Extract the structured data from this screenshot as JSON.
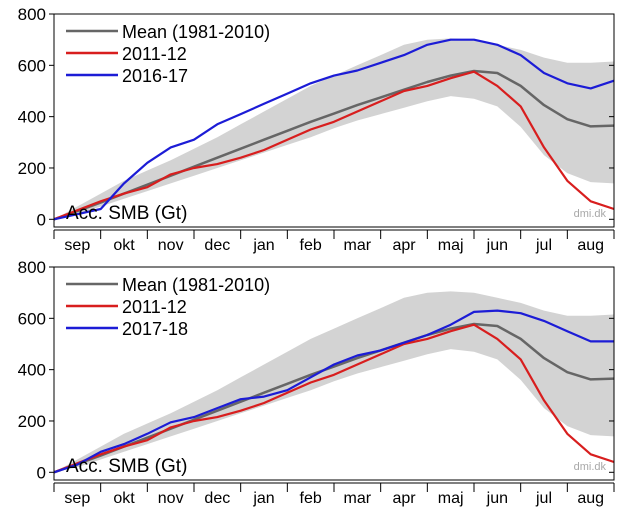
{
  "chart_data": [
    {
      "type": "line",
      "ylabel": "Acc. SMB (Gt)",
      "watermark": "dmi.dk",
      "ylim": [
        -30,
        800
      ],
      "yticks": [
        0,
        200,
        400,
        600,
        800
      ],
      "months": [
        "sep",
        "okt",
        "nov",
        "dec",
        "jan",
        "feb",
        "mar",
        "apr",
        "maj",
        "jun",
        "jul",
        "aug"
      ],
      "x": [
        0,
        15,
        30,
        45,
        60,
        75,
        90,
        105,
        120,
        135,
        150,
        165,
        180,
        195,
        210,
        225,
        240,
        255,
        270,
        285,
        300,
        315,
        330,
        345,
        360
      ],
      "band": {
        "lower": [
          0,
          20,
          50,
          80,
          110,
          140,
          170,
          200,
          230,
          260,
          290,
          320,
          355,
          385,
          410,
          435,
          460,
          480,
          470,
          440,
          360,
          250,
          180,
          145,
          140
        ],
        "upper": [
          0,
          50,
          100,
          150,
          190,
          230,
          275,
          320,
          370,
          420,
          470,
          520,
          560,
          600,
          640,
          680,
          700,
          705,
          700,
          680,
          660,
          630,
          610,
          610,
          615
        ]
      },
      "series": [
        {
          "name": "Mean (1981-2010)",
          "color": "#666666",
          "values": [
            0,
            32,
            65,
            100,
            135,
            170,
            205,
            240,
            275,
            310,
            345,
            380,
            412,
            445,
            475,
            505,
            535,
            560,
            578,
            570,
            520,
            445,
            390,
            362,
            365
          ]
        },
        {
          "name": "2011-12",
          "color": "#d81e1e",
          "values": [
            0,
            35,
            70,
            100,
            125,
            175,
            200,
            215,
            240,
            270,
            310,
            350,
            380,
            420,
            460,
            500,
            520,
            550,
            575,
            520,
            440,
            280,
            150,
            70,
            40
          ]
        },
        {
          "name": "2016-17",
          "color": "#1c1cd6",
          "values": [
            0,
            20,
            40,
            140,
            220,
            280,
            310,
            370,
            410,
            450,
            490,
            530,
            560,
            580,
            610,
            640,
            680,
            700,
            700,
            680,
            640,
            570,
            530,
            510,
            540
          ]
        }
      ]
    },
    {
      "type": "line",
      "ylabel": "Acc. SMB (Gt)",
      "watermark": "dmi.dk",
      "ylim": [
        -30,
        800
      ],
      "yticks": [
        0,
        200,
        400,
        600,
        800
      ],
      "months": [
        "sep",
        "okt",
        "nov",
        "dec",
        "jan",
        "feb",
        "mar",
        "apr",
        "maj",
        "jun",
        "jul",
        "aug"
      ],
      "x": [
        0,
        15,
        30,
        45,
        60,
        75,
        90,
        105,
        120,
        135,
        150,
        165,
        180,
        195,
        210,
        225,
        240,
        255,
        270,
        285,
        300,
        315,
        330,
        345,
        360
      ],
      "band": {
        "lower": [
          0,
          20,
          50,
          80,
          110,
          140,
          170,
          200,
          230,
          260,
          290,
          320,
          355,
          385,
          410,
          435,
          460,
          480,
          470,
          440,
          360,
          250,
          180,
          145,
          140
        ],
        "upper": [
          0,
          50,
          100,
          150,
          190,
          230,
          275,
          320,
          370,
          420,
          470,
          520,
          560,
          600,
          640,
          680,
          700,
          705,
          700,
          680,
          660,
          630,
          610,
          610,
          615
        ]
      },
      "series": [
        {
          "name": "Mean (1981-2010)",
          "color": "#666666",
          "values": [
            0,
            32,
            65,
            100,
            135,
            170,
            205,
            240,
            275,
            310,
            345,
            380,
            412,
            445,
            475,
            505,
            535,
            560,
            578,
            570,
            520,
            445,
            390,
            362,
            365
          ]
        },
        {
          "name": "2011-12",
          "color": "#d81e1e",
          "values": [
            0,
            35,
            70,
            100,
            125,
            175,
            200,
            215,
            240,
            270,
            310,
            350,
            380,
            420,
            460,
            500,
            520,
            550,
            575,
            520,
            440,
            280,
            150,
            70,
            40
          ]
        },
        {
          "name": "2017-18",
          "color": "#1c1cd6",
          "values": [
            0,
            30,
            80,
            110,
            150,
            195,
            215,
            250,
            285,
            295,
            320,
            370,
            420,
            455,
            475,
            505,
            535,
            575,
            625,
            630,
            620,
            590,
            550,
            510,
            510
          ]
        }
      ]
    }
  ]
}
